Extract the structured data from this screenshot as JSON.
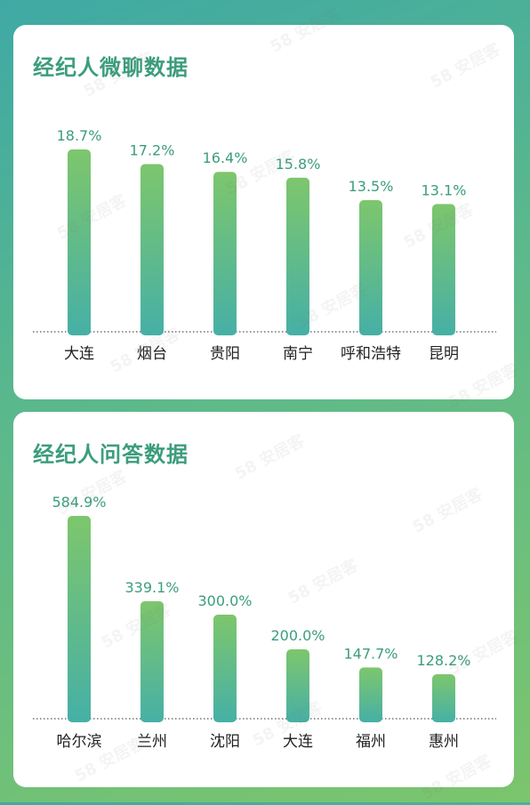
{
  "watermark": "58 安居客",
  "chart_data": [
    {
      "type": "bar",
      "title": "经纪人微聊数据",
      "categories": [
        "大连",
        "烟台",
        "贵阳",
        "南宁",
        "呼和浩特",
        "昆明"
      ],
      "values": [
        18.7,
        17.2,
        16.4,
        15.8,
        13.5,
        13.1
      ],
      "labels": [
        "18.7%",
        "17.2%",
        "16.4%",
        "15.8%",
        "13.5%",
        "13.1%"
      ],
      "ylim": [
        0,
        18.7
      ],
      "grid": false,
      "colors": {
        "bar_top": "#7dc66c",
        "bar_bottom": "#46b0a6",
        "label": "#3c9d7c",
        "category": "#222222"
      }
    },
    {
      "type": "bar",
      "title": "经纪人问答数据",
      "categories": [
        "哈尔滨",
        "兰州",
        "沈阳",
        "大连",
        "福州",
        "惠州"
      ],
      "values": [
        584.9,
        339.1,
        300.0,
        200.0,
        147.7,
        128.2
      ],
      "labels": [
        "584.9%",
        "339.1%",
        "300.0%",
        "200.0%",
        "147.7%",
        "128.2%"
      ],
      "ylim": [
        0,
        584.9
      ],
      "grid": false,
      "colors": {
        "bar_top": "#7dc66c",
        "bar_bottom": "#46b0a6",
        "label": "#3c9d7c",
        "category": "#222222"
      }
    }
  ]
}
